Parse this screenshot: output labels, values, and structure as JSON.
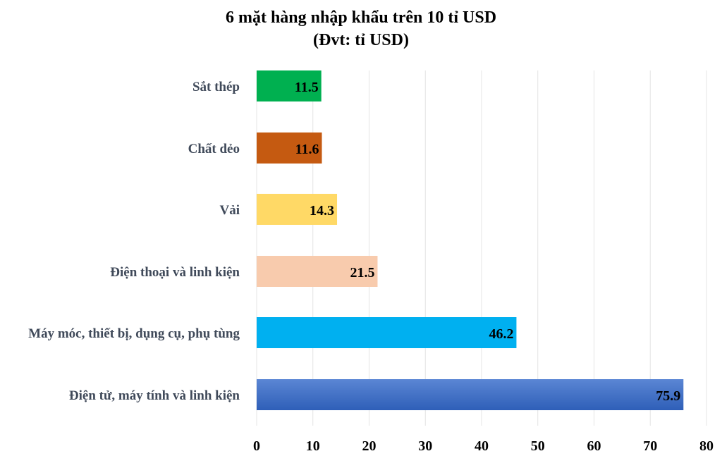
{
  "chart_data": {
    "type": "bar",
    "orientation": "horizontal",
    "title": "6 mặt hàng nhập khẩu trên 10 tỉ USD",
    "subtitle": "(Đvt: tỉ USD)",
    "categories": [
      "Sắt thép",
      "Chất dẻo",
      "Vải",
      "Điện thoại và linh kiện",
      "Máy móc, thiết bị, dụng cụ, phụ tùng",
      "Điện tử, máy tính và linh kiện"
    ],
    "values": [
      11.5,
      11.6,
      14.3,
      21.5,
      46.2,
      75.9
    ],
    "value_labels": [
      "11.5",
      "11.6",
      "14.3",
      "21.5",
      "46.2",
      "75.9"
    ],
    "colors": [
      "#00b050",
      "#c55a11",
      "#ffd966",
      "#f8cbad",
      "#00b0f0",
      "#4472c4"
    ],
    "xlim": [
      0,
      80
    ],
    "xticks": [
      "0",
      "10",
      "20",
      "30",
      "40",
      "50",
      "60",
      "70",
      "80"
    ],
    "xlabel": "",
    "ylabel": "",
    "grid": "vertical",
    "legend": "none"
  }
}
